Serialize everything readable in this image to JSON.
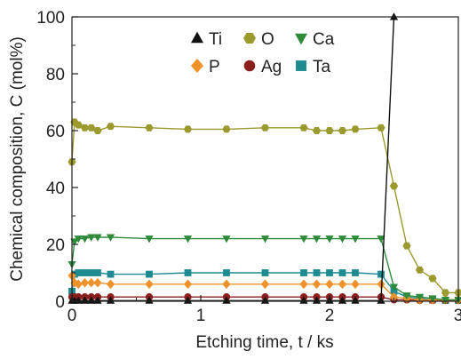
{
  "chart_data": {
    "type": "line",
    "title": "",
    "xlabel": "Etching time, t / ks",
    "ylabel": "Chemical composition, C (mol%)",
    "xlim": [
      0,
      3
    ],
    "ylim": [
      0,
      100
    ],
    "xticks": [
      "0",
      "1",
      "2",
      "3"
    ],
    "yticks": [
      "0",
      "20",
      "40",
      "60",
      "80",
      "100"
    ],
    "grid": false,
    "legend_position": "top",
    "series": [
      {
        "name": "Ti",
        "color": "#111111",
        "marker": "triangle-up",
        "x": [
          0,
          0.02,
          0.05,
          0.1,
          0.15,
          0.2,
          0.3,
          0.6,
          0.9,
          1.2,
          1.5,
          1.8,
          1.9,
          2.0,
          2.1,
          2.2,
          2.4,
          2.5
        ],
        "y": [
          0.2,
          0.2,
          0.2,
          0.2,
          0.2,
          0.2,
          0.2,
          0.2,
          0.2,
          0.2,
          0.2,
          0.2,
          0.2,
          0.2,
          0.2,
          0.2,
          0.2,
          100
        ]
      },
      {
        "name": "O",
        "color": "#9a9a2e",
        "marker": "hexagon",
        "x": [
          0,
          0.02,
          0.05,
          0.1,
          0.15,
          0.2,
          0.3,
          0.6,
          0.9,
          1.2,
          1.5,
          1.8,
          1.9,
          2.0,
          2.1,
          2.2,
          2.4,
          2.5,
          2.6,
          2.7,
          2.8,
          2.9,
          3.0
        ],
        "y": [
          49,
          63,
          62,
          61,
          61,
          60,
          61.5,
          61,
          60.5,
          60.5,
          61,
          61,
          60,
          60,
          60,
          60.5,
          61,
          40.5,
          19.5,
          11,
          8,
          3,
          3
        ]
      },
      {
        "name": "Ca",
        "color": "#2f8a3a",
        "marker": "triangle-down",
        "x": [
          0,
          0.02,
          0.05,
          0.1,
          0.15,
          0.2,
          0.3,
          0.6,
          0.9,
          1.2,
          1.5,
          1.8,
          1.9,
          2.0,
          2.1,
          2.2,
          2.4,
          2.5,
          2.6,
          2.7,
          2.8,
          2.9,
          3.0
        ],
        "y": [
          13,
          21,
          22,
          22,
          22.5,
          22.5,
          22.5,
          22,
          22,
          22,
          22,
          22,
          22,
          22,
          22,
          22,
          22,
          5,
          2,
          1.5,
          1,
          0.5,
          0.5
        ]
      },
      {
        "name": "P",
        "color": "#f0922b",
        "marker": "diamond",
        "x": [
          0,
          0.02,
          0.05,
          0.1,
          0.15,
          0.2,
          0.3,
          0.6,
          0.9,
          1.2,
          1.5,
          1.8,
          1.9,
          2.0,
          2.1,
          2.2,
          2.4,
          2.5,
          2.6,
          2.7,
          2.8,
          2.9,
          3.0
        ],
        "y": [
          9,
          6.5,
          6,
          6.5,
          6.5,
          6.5,
          6,
          6,
          6,
          6,
          6,
          6,
          6,
          6,
          6,
          6,
          6,
          1.5,
          1,
          0.5,
          0.5,
          0.5,
          0.5
        ]
      },
      {
        "name": "Ag",
        "color": "#8b1f1f",
        "marker": "circle",
        "x": [
          0,
          0.02,
          0.05,
          0.1,
          0.15,
          0.2,
          0.3,
          0.6,
          0.9,
          1.2,
          1.5,
          1.8,
          1.9,
          2.0,
          2.1,
          2.2,
          2.4,
          2.5,
          2.6,
          2.7,
          2.8,
          2.9,
          3.0
        ],
        "y": [
          1.5,
          1.5,
          1.5,
          1.5,
          1.5,
          1.5,
          1.5,
          1.5,
          1.5,
          1.5,
          1.5,
          1.5,
          1.5,
          1.5,
          1.5,
          1.5,
          1.5,
          0.5,
          0.5,
          0.3,
          0.3,
          0.3,
          0.3
        ]
      },
      {
        "name": "Ta",
        "color": "#1e8a92",
        "marker": "square",
        "x": [
          0,
          0.02,
          0.05,
          0.1,
          0.15,
          0.2,
          0.3,
          0.6,
          0.9,
          1.2,
          1.5,
          1.8,
          1.9,
          2.0,
          2.1,
          2.2,
          2.4,
          2.5,
          2.6,
          2.7,
          2.8,
          2.9,
          3.0
        ],
        "y": [
          3.5,
          9.5,
          10,
          10,
          10,
          10,
          9.5,
          9.5,
          10,
          10,
          10,
          10,
          10,
          10,
          10,
          10,
          9.5,
          3.5,
          1.5,
          1,
          0.5,
          0.3,
          0.3
        ]
      }
    ]
  }
}
